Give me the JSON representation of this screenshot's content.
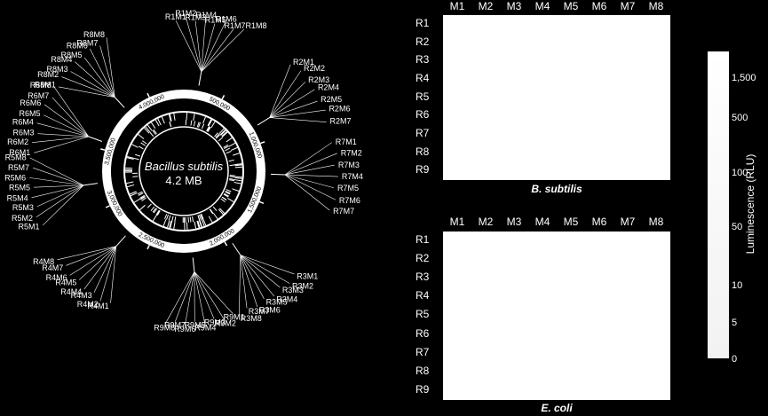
{
  "genome": {
    "organism": "Bacillus subtilis",
    "size": "4.2 MB",
    "coord_labels": [
      {
        "text": "500,000",
        "angle": 28
      },
      {
        "text": "1,000,000",
        "angle": 70
      },
      {
        "text": "1,500,000",
        "angle": 112
      },
      {
        "text": "2,000,000",
        "angle": 150
      },
      {
        "text": "2,500,000",
        "angle": 205
      },
      {
        "text": "3,000,000",
        "angle": 245
      },
      {
        "text": "3,500,000",
        "angle": 285
      },
      {
        "text": "4,000,000",
        "angle": 335
      }
    ],
    "spots": [
      {
        "key": "R1",
        "angle": 10,
        "labels": [
          "R1M1",
          "R1M2",
          "R1M3",
          "R1M4",
          "R1M5",
          "R1M6",
          "R1M7",
          "R1M8"
        ]
      },
      {
        "key": "R2",
        "angle": 58,
        "labels": [
          "R2M1",
          "R2M2",
          "R2M3",
          "R2M4",
          "R2M5",
          "R2M6",
          "R2M7"
        ]
      },
      {
        "key": "R7",
        "angle": 92,
        "labels": [
          "R7M1",
          "R7M2",
          "R7M3",
          "R7M4",
          "R7M5",
          "R7M6",
          "R7M7"
        ]
      },
      {
        "key": "R3",
        "angle": 146,
        "labels": [
          "R3M1",
          "R3M2",
          "R3M3",
          "R3M4",
          "R3M5",
          "R3M6",
          "R3M7",
          "R3M8"
        ]
      },
      {
        "key": "R9",
        "angle": 174,
        "labels": [
          "R9M1",
          "R9M2",
          "R9M3",
          "R9M4",
          "R9M5",
          "R9M6",
          "R9M7",
          "R9M8"
        ]
      },
      {
        "key": "R4",
        "angle": 222,
        "labels": [
          "R4M1",
          "R4M2",
          "R4M3",
          "R4M4",
          "R4M5",
          "R4M6",
          "R4M7",
          "R4M8"
        ]
      },
      {
        "key": "R5",
        "angle": 262,
        "labels": [
          "R5M1",
          "R5M2",
          "R5M3",
          "R5M4",
          "R5M5",
          "R5M6",
          "R5M7",
          "R5M8"
        ]
      },
      {
        "key": "R6",
        "angle": 290,
        "labels": [
          "R6M1",
          "R6M2",
          "R6M3",
          "R6M4",
          "R6M5",
          "R6M6",
          "R6M7",
          "R6M8"
        ]
      },
      {
        "key": "R8",
        "angle": 317,
        "labels": [
          "R8M1",
          "R8M2",
          "R8M3",
          "R8M4",
          "R8M5",
          "R8M6",
          "R8M7",
          "R8M8"
        ]
      }
    ]
  },
  "heatmaps": [
    {
      "caption": "B. subtilis"
    },
    {
      "caption": "E. coli"
    }
  ],
  "columns": [
    "M1",
    "M2",
    "M3",
    "M4",
    "M5",
    "M6",
    "M7",
    "M8"
  ],
  "rows": [
    "R1",
    "R2",
    "R3",
    "R4",
    "R5",
    "R6",
    "R7",
    "R8",
    "R9"
  ],
  "legend": {
    "title": "Luminescence (RLU)",
    "ticks": [
      "1,500",
      "500",
      "100",
      "50",
      "10",
      "5",
      "0"
    ]
  }
}
